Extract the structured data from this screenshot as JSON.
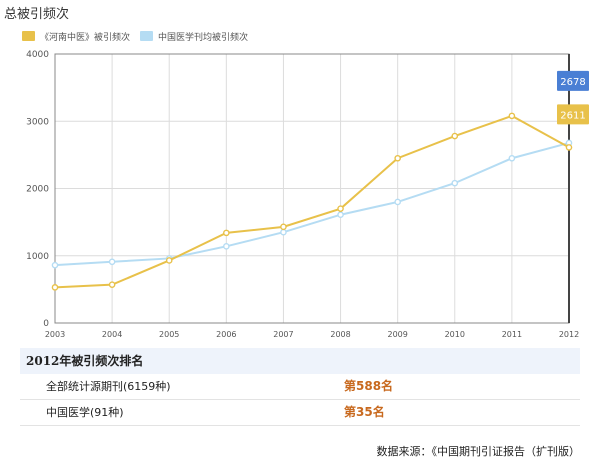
{
  "title": "总被引频次",
  "legend": [
    {
      "name": "《河南中医》被引频次",
      "color": "#e8c14a"
    },
    {
      "name": "中国医学刊均被引频次",
      "color": "#b5dcf3"
    }
  ],
  "chart_data": {
    "type": "line",
    "title": "总被引频次",
    "x": [
      "2003",
      "2004",
      "2005",
      "2006",
      "2007",
      "2008",
      "2009",
      "2010",
      "2011",
      "2012"
    ],
    "ylim": [
      0,
      4000
    ],
    "yticks": [
      0,
      1000,
      2000,
      3000,
      4000
    ],
    "grid": true,
    "legend_position": "top-left",
    "series": [
      {
        "name": "《河南中医》被引频次",
        "color": "#e8c14a",
        "values": [
          530,
          570,
          930,
          1340,
          1430,
          1700,
          2450,
          2780,
          3080,
          2611
        ]
      },
      {
        "name": "中国医学刊均被引频次",
        "color": "#b5dcf3",
        "values": [
          860,
          910,
          960,
          1140,
          1350,
          1610,
          1800,
          2080,
          2450,
          2678
        ]
      }
    ],
    "end_labels": [
      {
        "text": "2678",
        "color": "#4a7fd4"
      },
      {
        "text": "2611",
        "color": "#e8c14a"
      }
    ]
  },
  "ranking": {
    "header": "2012年被引频次排名",
    "rows": [
      {
        "label": "全部统计源期刊(6159种)",
        "value": "第588名"
      },
      {
        "label": "中国医学(91种)",
        "value": "第35名"
      }
    ]
  },
  "source": "数据来源：《中国期刊引证报告（扩刊版）"
}
